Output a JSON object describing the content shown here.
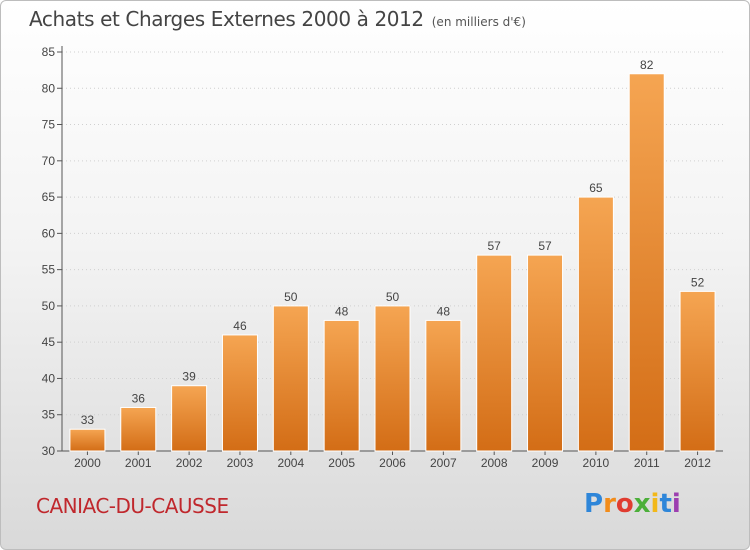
{
  "header": {
    "title": "Achats et Charges Externes 2000 à 2012",
    "subtitle": "(en milliers d'€)"
  },
  "footer": {
    "place": "CANIAC-DU-CAUSSE",
    "logo": "Proxiti"
  },
  "colors": {
    "bar_top": "#f5a552",
    "bar_bottom": "#d36d16",
    "bar_edge": "#ffffff",
    "axis": "#555555",
    "grid": "#d0d0d0",
    "title": "#444444",
    "place": "#c0282d"
  },
  "chart_data": {
    "type": "bar",
    "title": "Achats et Charges Externes 2000 à 2012",
    "subtitle": "(en milliers d'€)",
    "xlabel": "",
    "ylabel": "",
    "categories": [
      "2000",
      "2001",
      "2002",
      "2003",
      "2004",
      "2005",
      "2006",
      "2007",
      "2008",
      "2009",
      "2010",
      "2011",
      "2012"
    ],
    "values": [
      33,
      36,
      39,
      46,
      50,
      48,
      50,
      48,
      57,
      57,
      65,
      82,
      52
    ],
    "ylim": [
      30,
      85
    ],
    "yticks": [
      30,
      35,
      40,
      45,
      50,
      55,
      60,
      65,
      70,
      75,
      80,
      85
    ],
    "grid": true,
    "data_labels": true
  }
}
